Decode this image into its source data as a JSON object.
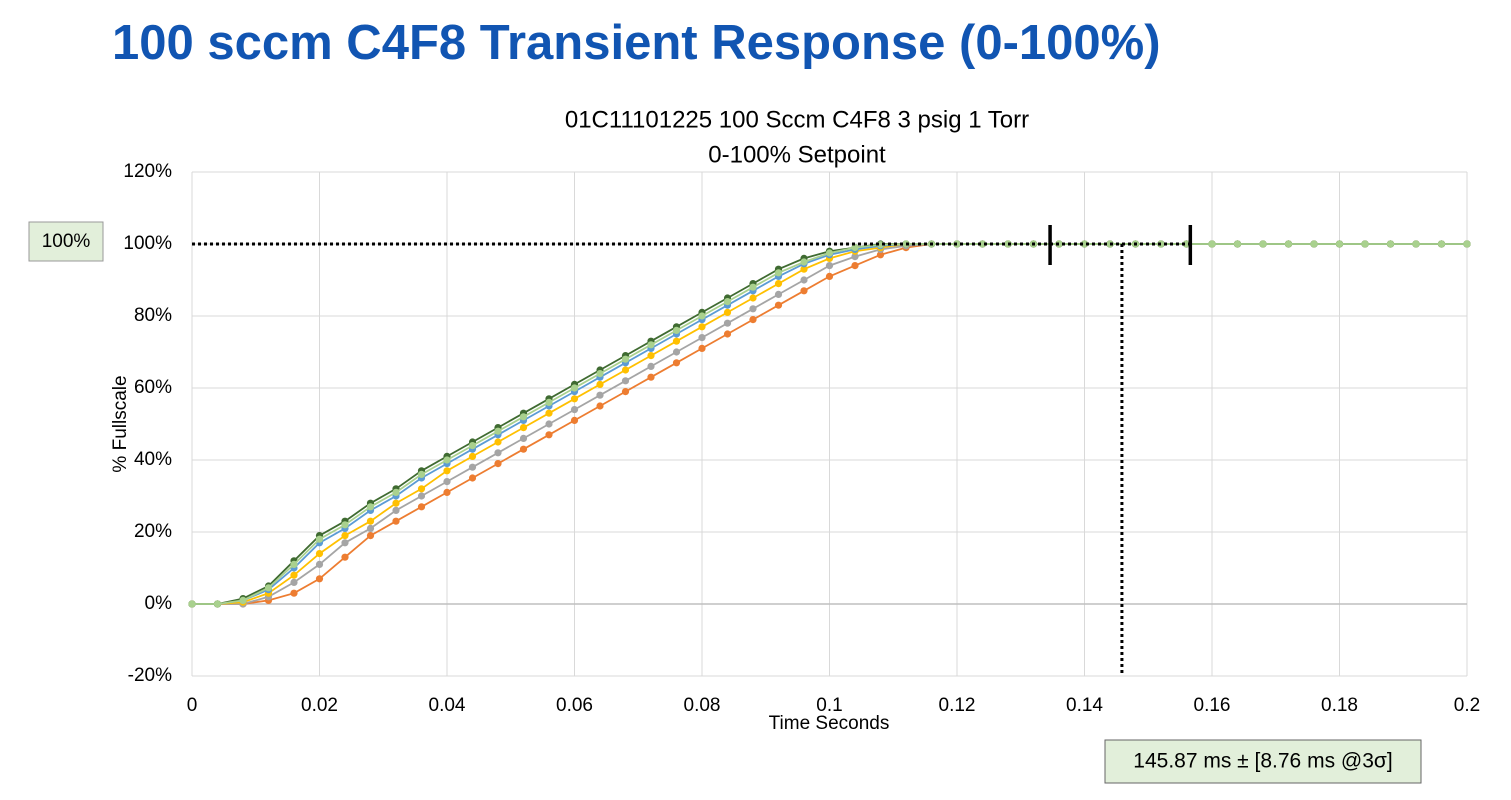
{
  "chart_data": {
    "type": "line",
    "page_title": "100 sccm C4F8 Transient Response (0-100%)",
    "title": "01C11101225 100 Sccm C4F8 3 psig 1 Torr",
    "subtitle": "0-100% Setpoint",
    "xlabel": "Time Seconds",
    "ylabel": "% Fullscale",
    "x": [
      0,
      0.004,
      0.008,
      0.012,
      0.016,
      0.02,
      0.024,
      0.028,
      0.032,
      0.036,
      0.04,
      0.044,
      0.048,
      0.052,
      0.056,
      0.06,
      0.064,
      0.068,
      0.072,
      0.076,
      0.08,
      0.084,
      0.088,
      0.092,
      0.096,
      0.1,
      0.104,
      0.108,
      0.112,
      0.116,
      0.12,
      0.124,
      0.128,
      0.132,
      0.136,
      0.14,
      0.144,
      0.148,
      0.152,
      0.156,
      0.16,
      0.164,
      0.168,
      0.172,
      0.176,
      0.18,
      0.184,
      0.188,
      0.192,
      0.196,
      0.2
    ],
    "series": [
      {
        "color": "#ed7d31",
        "values": [
          0,
          0,
          0,
          1,
          3,
          7,
          13,
          19,
          23,
          27,
          31,
          35,
          39,
          43,
          47,
          51,
          55,
          59,
          63,
          67,
          71,
          75,
          79,
          83,
          87,
          91,
          94,
          97,
          99,
          100,
          100,
          100,
          100,
          100,
          100,
          100,
          100,
          100,
          100,
          100,
          100,
          100,
          100,
          100,
          100,
          100,
          100,
          100,
          100,
          100,
          100
        ]
      },
      {
        "color": "#a5a5a5",
        "values": [
          0,
          0,
          0,
          2,
          6,
          11,
          17,
          21,
          26,
          30,
          34,
          38,
          42,
          46,
          50,
          54,
          58,
          62,
          66,
          70,
          74,
          78,
          82,
          86,
          90,
          94,
          96.5,
          98.5,
          99.5,
          100,
          100,
          100,
          100,
          100,
          100,
          100,
          100,
          100,
          100,
          100,
          100,
          100,
          100,
          100,
          100,
          100,
          100,
          100,
          100,
          100,
          100
        ]
      },
      {
        "color": "#ffc000",
        "values": [
          0,
          0,
          0.5,
          3,
          8,
          14,
          19,
          23,
          28,
          32,
          37,
          41,
          45,
          49,
          53,
          57,
          61,
          65,
          69,
          73,
          77,
          81,
          85,
          89,
          93,
          96,
          98,
          99,
          100,
          100,
          100,
          100,
          100,
          100,
          100,
          100,
          100,
          100,
          100,
          100,
          100,
          100,
          100,
          100,
          100,
          100,
          100,
          100,
          100,
          100,
          100
        ]
      },
      {
        "color": "#5b9bd5",
        "values": [
          0,
          0,
          1,
          4,
          10,
          17,
          21,
          26,
          30,
          35,
          39,
          43,
          47,
          51,
          55,
          59,
          63,
          67,
          71,
          75,
          79,
          83,
          87,
          91,
          94.5,
          97,
          98.5,
          99.5,
          100,
          100,
          100,
          100,
          100,
          100,
          100,
          100,
          100,
          100,
          100,
          100,
          100,
          100,
          100,
          100,
          100,
          100,
          100,
          100,
          100,
          100,
          100
        ]
      },
      {
        "color": "#3f6b31",
        "values": [
          0,
          0,
          1.5,
          5,
          12,
          19,
          23,
          28,
          32,
          37,
          41,
          45,
          49,
          53,
          57,
          61,
          65,
          69,
          73,
          77,
          81,
          85,
          89,
          93,
          96,
          98,
          99,
          100,
          100,
          100,
          100,
          100,
          100,
          100,
          100,
          100,
          100,
          100,
          100,
          100,
          100,
          100,
          100,
          100,
          100,
          100,
          100,
          100,
          100,
          100,
          100
        ]
      },
      {
        "color": "#a9d18e",
        "values": [
          0,
          0,
          1,
          4.5,
          11,
          18,
          22,
          27,
          31,
          36,
          40,
          44,
          48,
          52,
          56,
          60,
          64,
          68,
          72,
          76,
          80,
          84,
          88,
          92,
          95,
          97.5,
          99,
          99.8,
          100,
          100,
          100,
          100,
          100,
          100,
          100,
          100,
          100,
          100,
          100,
          100,
          100,
          100,
          100,
          100,
          100,
          100,
          100,
          100,
          100,
          100,
          100
        ]
      }
    ],
    "xlim": [
      0,
      0.2
    ],
    "xticks": [
      0,
      0.02,
      0.04,
      0.06,
      0.08,
      0.1,
      0.12,
      0.14,
      0.16,
      0.18,
      0.2
    ],
    "ylim": [
      -20,
      120
    ],
    "yticks": [
      {
        "value": -20,
        "label": "-20%"
      },
      {
        "value": 0,
        "label": "0%"
      },
      {
        "value": 20,
        "label": "20%"
      },
      {
        "value": 40,
        "label": "40%"
      },
      {
        "value": 60,
        "label": "60%"
      },
      {
        "value": 80,
        "label": "80%"
      },
      {
        "value": 100,
        "label": "100%"
      },
      {
        "value": 120,
        "label": "120%"
      }
    ],
    "grid": true,
    "annotations": {
      "setpoint": 100,
      "setpoint_label": "100%",
      "response_time": 0.14587,
      "band": [
        0.1346,
        0.1566
      ],
      "result_label": "145.87 ms ± [8.76 ms @3σ]"
    }
  }
}
